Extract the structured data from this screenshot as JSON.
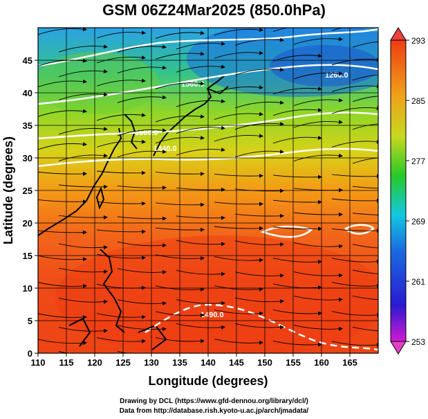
{
  "title": "GSM 06Z24Mar2025 (850.0hPa)",
  "chart_data": {
    "type": "heatmap",
    "title": "GSM 06Z24Mar2025 (850.0hPa)",
    "xlabel": "Longitude (degrees)",
    "ylabel": "Latitude (degrees)",
    "xlim": [
      110,
      170
    ],
    "ylim": [
      0,
      50
    ],
    "x_ticks": [
      "110",
      "115",
      "120",
      "125",
      "130",
      "135",
      "140",
      "145",
      "150",
      "155",
      "160",
      "165"
    ],
    "y_ticks": [
      "0",
      "5",
      "10",
      "15",
      "20",
      "25",
      "30",
      "35",
      "40",
      "45"
    ],
    "colorbar": {
      "min": 253,
      "max": 293,
      "labels": [
        "293",
        "285",
        "277",
        "269",
        "261",
        "253"
      ]
    },
    "contour_labels": [
      "1260.0",
      "1500.0",
      "1440.0",
      "1560.0",
      "1490.0"
    ],
    "grid": true
  },
  "credits": {
    "line1": "Drawing by DCL (https://www.gfd-dennou.org/library/dcl/)",
    "line2": "Data from http://database.rish.kyoto-u.ac.jp/arch/jmadata/"
  },
  "colors": {
    "warm": "#e83a14",
    "mid": "#3fc71a",
    "cool": "#1b7fe6",
    "grid": "#000000",
    "contour": "#ffffff"
  }
}
